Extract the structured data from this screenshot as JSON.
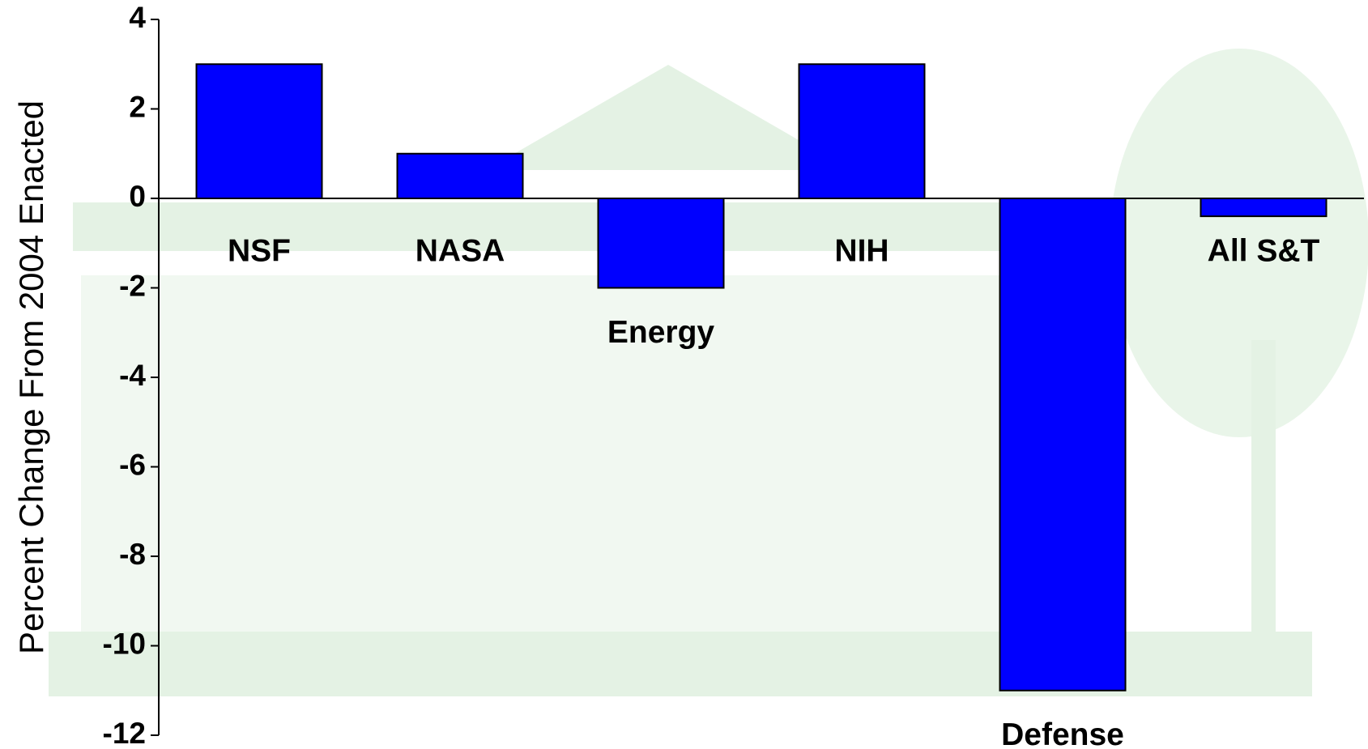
{
  "chart_data": {
    "type": "bar",
    "y_label": "Percent Change From 2004 Enacted",
    "categories": [
      "NSF",
      "NASA",
      "Energy",
      "NIH",
      "Defense",
      "All S&T"
    ],
    "values": [
      3,
      1,
      -2,
      3,
      -11,
      -0.4
    ],
    "color": "#0000ff",
    "ylim": [
      -12,
      4
    ],
    "yticks": [
      -12,
      -10,
      -8,
      -6,
      -4,
      -2,
      0,
      2,
      4
    ]
  }
}
